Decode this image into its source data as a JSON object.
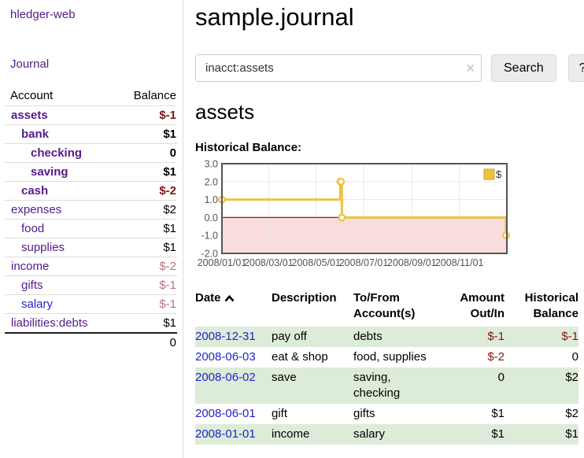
{
  "brand": "hledger-web",
  "icons": {
    "sort_asc": "chevron-up",
    "clear_search": "×"
  },
  "sidebar": {
    "journal_link": "Journal",
    "accounts": {
      "header_account": "Account",
      "header_balance": "Balance",
      "rows": [
        {
          "account": "assets",
          "balance": "$-1"
        },
        {
          "account": "bank",
          "balance": "$1"
        },
        {
          "account": "checking",
          "balance": "0"
        },
        {
          "account": "saving",
          "balance": "$1"
        },
        {
          "account": "cash",
          "balance": "$-2"
        },
        {
          "account": "expenses",
          "balance": "$2"
        },
        {
          "account": "food",
          "balance": "$1"
        },
        {
          "account": "supplies",
          "balance": "$1"
        },
        {
          "account": "income",
          "balance": "$-2"
        },
        {
          "account": "gifts",
          "balance": "$-1"
        },
        {
          "account": "salary",
          "balance": "$-1"
        },
        {
          "account": "liabilities:debts",
          "balance": "$1"
        }
      ],
      "total": "0"
    }
  },
  "main": {
    "title": "sample.journal",
    "search": {
      "query": "inacct:assets",
      "search_button": "Search",
      "help_button": "?"
    },
    "account_heading": "assets",
    "chart_title": "Historical Balance:",
    "register": {
      "headers": {
        "date": "Date",
        "description": "Description",
        "tofrom": "To/From Account(s)",
        "amount": "Amount Out/In",
        "balance": "Historical Balance"
      },
      "rows": [
        {
          "date": "2008-12-31",
          "description": "pay off",
          "accounts": "debts",
          "amount": "$-1",
          "balance": "$-1"
        },
        {
          "date": "2008-06-03",
          "description": "eat & shop",
          "accounts": "food, supplies",
          "amount": "$-2",
          "balance": "0"
        },
        {
          "date": "2008-06-02",
          "description": "save",
          "accounts": "saving, checking",
          "amount": "0",
          "balance": "$2"
        },
        {
          "date": "2008-06-01",
          "description": "gift",
          "accounts": "gifts",
          "amount": "$1",
          "balance": "$2"
        },
        {
          "date": "2008-01-01",
          "description": "income",
          "accounts": "salary",
          "amount": "$1",
          "balance": "$1"
        }
      ]
    }
  },
  "chart_data": {
    "type": "line",
    "step": true,
    "title": "Historical Balance:",
    "legend": [
      {
        "label": "$",
        "color": "#edc240"
      }
    ],
    "x": [
      "2008-01-01",
      "2008-06-01",
      "2008-06-02",
      "2008-06-03",
      "2008-12-31"
    ],
    "values": [
      1,
      2,
      2,
      0,
      -1
    ],
    "xlim": [
      "2008-01-01",
      "2009-01-01"
    ],
    "ylim": [
      -2,
      3
    ],
    "y_ticks": [
      3,
      2,
      1,
      0,
      -1,
      -2
    ],
    "x_tick_dates": [
      "2008-01-01",
      "2008-03-01",
      "2008-05-01",
      "2008-07-01",
      "2008-09-01",
      "2008-11-01"
    ],
    "x_tick_labels": [
      "2008/01/01",
      "2008/03/01",
      "2008/05/01",
      "2008/07/01",
      "2008/09/01",
      "2008/11/01"
    ],
    "grid": true,
    "legend_position": "top-right",
    "colors": {
      "line": "#edc240",
      "marker_fill": "#ffffff",
      "zero_line": "#8b1c1c",
      "negative_region": "#f9dcdc",
      "grid": "#e7e7e7",
      "border": "#545454",
      "tick_text": "#545454"
    }
  }
}
